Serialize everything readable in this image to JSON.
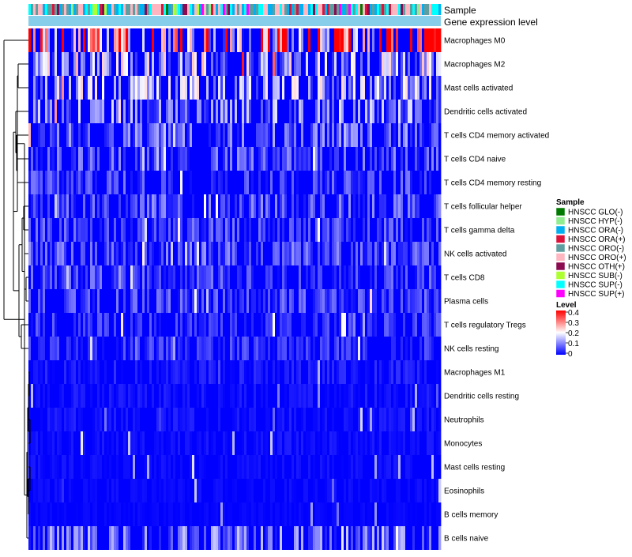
{
  "chart_data": {
    "type": "heatmap",
    "title": "",
    "annotation_tracks": [
      "Sample",
      "Gene expression level"
    ],
    "rows": [
      {
        "label": "Macrophages M0",
        "mean": 0.28
      },
      {
        "label": "Macrophages M2",
        "mean": 0.13
      },
      {
        "label": "Mast cells activated",
        "mean": 0.12
      },
      {
        "label": "Dendritic cells activated",
        "mean": 0.09
      },
      {
        "label": "T cells CD4 memory activated",
        "mean": 0.07
      },
      {
        "label": "T cells CD4 naive",
        "mean": 0.06
      },
      {
        "label": "T cells CD4 memory resting",
        "mean": 0.05
      },
      {
        "label": "T cells follicular helper",
        "mean": 0.06
      },
      {
        "label": "T cells gamma delta",
        "mean": 0.05
      },
      {
        "label": "NK cells activated",
        "mean": 0.06
      },
      {
        "label": "T cells CD8",
        "mean": 0.05
      },
      {
        "label": "Plasma cells",
        "mean": 0.05
      },
      {
        "label": "T cells regulatory  Tregs",
        "mean": 0.04
      },
      {
        "label": "NK cells resting",
        "mean": 0.04
      },
      {
        "label": "Macrophages M1",
        "mean": 0.02
      },
      {
        "label": "Dendritic cells resting",
        "mean": 0.015
      },
      {
        "label": "Neutrophils",
        "mean": 0.015
      },
      {
        "label": "Monocytes",
        "mean": 0.012
      },
      {
        "label": "Mast cells resting",
        "mean": 0.01
      },
      {
        "label": "Eosinophils",
        "mean": 0.008
      },
      {
        "label": "B cells memory",
        "mean": 0.005
      },
      {
        "label": "B cells naive",
        "mean": 0.08
      }
    ],
    "n_samples": 174,
    "legend_sample": {
      "title": "Sample",
      "items": [
        {
          "label": "HNSCC GLO(-)",
          "color": "#007a00"
        },
        {
          "label": "HNSCC HYP(-)",
          "color": "#90ee90"
        },
        {
          "label": "HNSCC ORA(-)",
          "color": "#00b0f0"
        },
        {
          "label": "HNSCC ORA(+)",
          "color": "#dc143c"
        },
        {
          "label": "HNSCC ORO(-)",
          "color": "#5f9ea0"
        },
        {
          "label": "HNSCC ORO(+)",
          "color": "#ffb6c1"
        },
        {
          "label": "HNSCC OTH(+)",
          "color": "#8b0a50"
        },
        {
          "label": "HNSCC SUB(-)",
          "color": "#adff2f"
        },
        {
          "label": "HNSCC SUP(-)",
          "color": "#00ffff"
        },
        {
          "label": "HNSCC SUP(+)",
          "color": "#ff00ff"
        }
      ]
    },
    "legend_level": {
      "title": "Level",
      "ticks": [
        "0.4",
        "0.3",
        "0.2",
        "0.1",
        "0"
      ],
      "range": [
        0,
        0.4
      ],
      "color_low": "#0000ff",
      "color_mid": "#ffffff",
      "color_high": "#ff0000"
    },
    "expression_track_color": "#87ceeb"
  }
}
